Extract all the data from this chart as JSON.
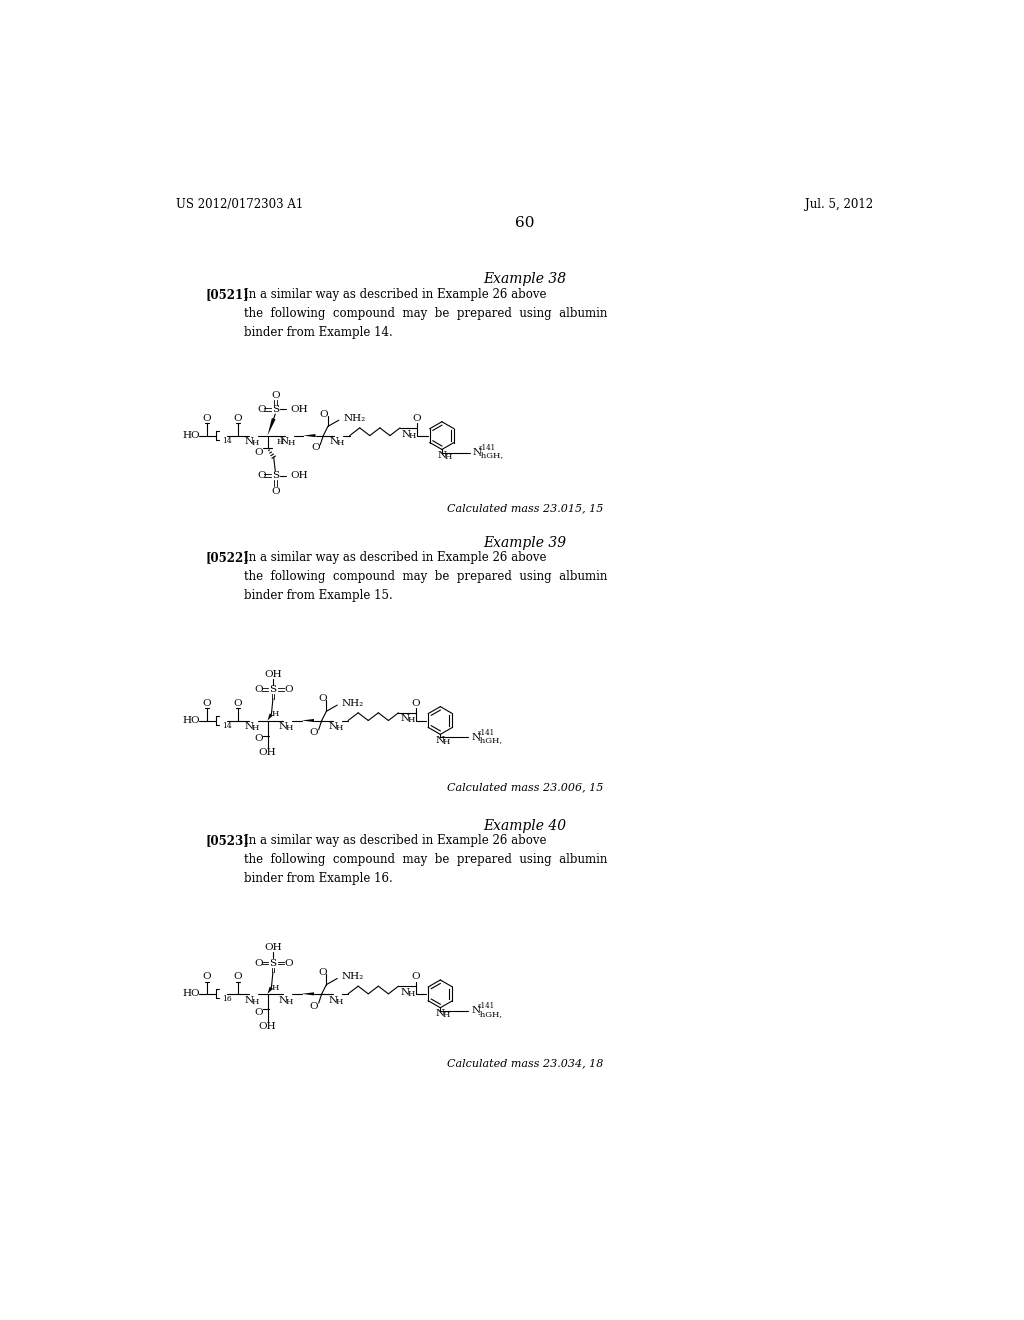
{
  "page_header_left": "US 2012/0172303 A1",
  "page_header_right": "Jul. 5, 2012",
  "page_number": "60",
  "background_color": "#ffffff",
  "text_color": "#000000",
  "examples": [
    {
      "title": "Example 38",
      "para_id": "[0521]",
      "para_body": "In a similar way as described in Example 26 above\nthe  following  compound  may  be  prepared  using  albumin\nbinder from Example 14.",
      "calc_mass": "Calculated mass 23.015, 15",
      "chain_sub": "14",
      "variant": 38,
      "struct_bky": 360
    },
    {
      "title": "Example 39",
      "para_id": "[0522]",
      "para_body": "In a similar way as described in Example 26 above\nthe  following  compound  may  be  prepared  using  albumin\nbinder from Example 15.",
      "calc_mass": "Calculated mass 23.006, 15",
      "chain_sub": "14",
      "variant": 39,
      "struct_bky": 730
    },
    {
      "title": "Example 40",
      "para_id": "[0523]",
      "para_body": "In a similar way as described in Example 26 above\nthe  following  compound  may  be  prepared  using  albumin\nbinder from Example 16.",
      "calc_mass": "Calculated mass 23.034, 18",
      "chain_sub": "16",
      "variant": 40,
      "struct_bky": 1085
    }
  ]
}
